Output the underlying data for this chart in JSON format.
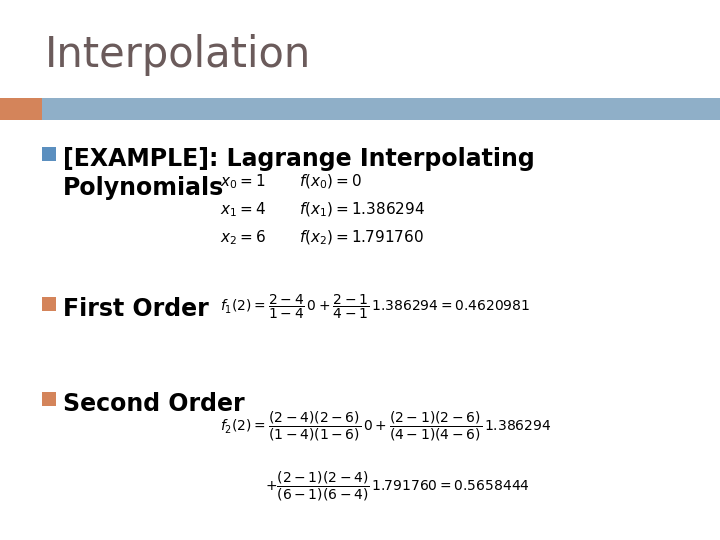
{
  "title": "Interpolation",
  "title_color": "#6b5b5b",
  "title_fontsize": 30,
  "header_bar_color_left": "#d4845a",
  "header_bar_color_right": "#8fafc8",
  "bullet_color_1": "#5b8fbf",
  "bullet_color_2": "#d4845a",
  "bullet_color_3": "#d4845a",
  "bg_color": "#ffffff",
  "bullet1_label": "[EXAMPLE]: Lagrange Interpolating\nPolynomials",
  "bullet1_fontsize": 17,
  "bullet2_label": "First Order",
  "bullet2_fontsize": 17,
  "bullet3_label": "Second Order",
  "bullet3_fontsize": 17,
  "math_fontsize": 10
}
